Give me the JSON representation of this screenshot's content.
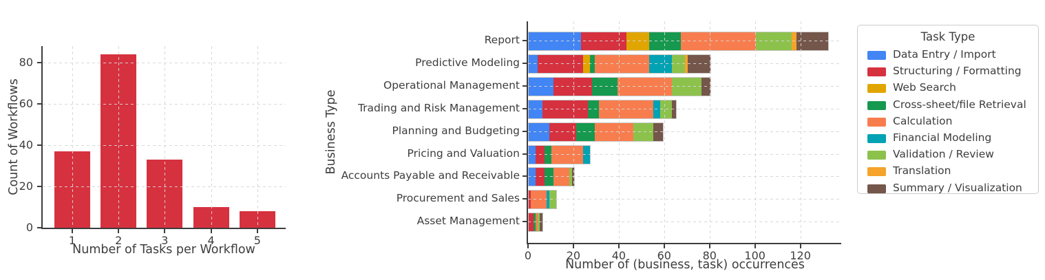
{
  "figure": {
    "background": "#ffffff",
    "text_color": "#3d3d3d",
    "spine_color": "#3c3c3c",
    "grid_color": "#d6d6d6"
  },
  "chart_data": [
    {
      "type": "bar",
      "title": "",
      "categories": [
        "1",
        "2",
        "3",
        "4",
        "5"
      ],
      "values": [
        37,
        84,
        33,
        10,
        8
      ],
      "bar_color": "#d6313f",
      "xlabel": "Number of Tasks per Workflow",
      "ylabel": "Count of Workflows",
      "ylim": [
        0,
        88
      ],
      "yticks": [
        0,
        20,
        40,
        60,
        80
      ],
      "grid": true,
      "legend": "none"
    },
    {
      "type": "stacked_barh",
      "title": "",
      "categories": [
        "Report",
        "Predictive Modeling",
        "Operational Management",
        "Trading and Risk Management",
        "Planning and Budgeting",
        "Pricing and Valuation",
        "Accounts Payable and Receivable",
        "Procurement and Sales",
        "Asset Management"
      ],
      "series": [
        {
          "name": "Data Entry / Import",
          "color": "#4285f4",
          "values": [
            23,
            4,
            11,
            6,
            9,
            3,
            3,
            0,
            0
          ]
        },
        {
          "name": "Structuring / Formatting",
          "color": "#d6313f",
          "values": [
            20,
            20,
            17,
            20,
            12,
            4,
            4,
            1,
            2
          ]
        },
        {
          "name": "Web Search",
          "color": "#e1a500",
          "values": [
            10,
            3,
            0,
            0,
            0,
            0,
            0,
            0,
            0
          ]
        },
        {
          "name": "Cross-sheet/file Retrieval",
          "color": "#16994f",
          "values": [
            14,
            2,
            11,
            5,
            8,
            3,
            4,
            0,
            1
          ]
        },
        {
          "name": "Calculation",
          "color": "#f87d4e",
          "values": [
            33,
            24,
            24,
            24,
            17,
            14,
            7,
            7,
            1
          ]
        },
        {
          "name": "Financial Modeling",
          "color": "#00a2b3",
          "values": [
            0,
            10,
            0,
            3,
            0,
            3,
            0,
            1,
            0
          ]
        },
        {
          "name": "Validation / Review",
          "color": "#8cc24c",
          "values": [
            16,
            6,
            13,
            5,
            9,
            0,
            1,
            3,
            1
          ]
        },
        {
          "name": "Translation",
          "color": "#f5a32a",
          "values": [
            2,
            1,
            0,
            0,
            0,
            0,
            0,
            0,
            0
          ]
        },
        {
          "name": "Summary / Visualization",
          "color": "#75564a",
          "values": [
            14,
            10,
            4,
            2,
            4,
            0,
            1,
            0,
            1
          ]
        }
      ],
      "totals": [
        132,
        80,
        80,
        65,
        59,
        27,
        20,
        12,
        6
      ],
      "xlabel": "Number of (business, task) occurrences",
      "ylabel": "Business Type",
      "xlim": [
        0,
        138
      ],
      "xticks": [
        0,
        20,
        40,
        60,
        80,
        100,
        120
      ],
      "grid": true,
      "legend_title": "Task Type",
      "legend_position": "right"
    }
  ]
}
